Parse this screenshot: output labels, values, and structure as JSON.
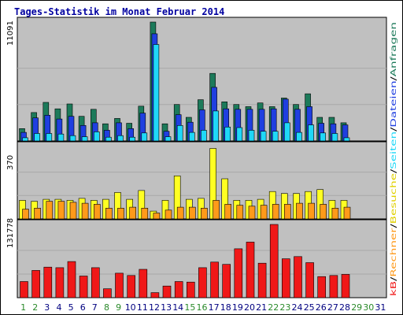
{
  "chart_data": {
    "type": "bar",
    "title": "Tages-Statistik im Monat Februar 2014",
    "x": [
      "1",
      "2",
      "3",
      "4",
      "5",
      "6",
      "7",
      "8",
      "9",
      "10",
      "11",
      "12",
      "13",
      "14",
      "15",
      "16",
      "17",
      "18",
      "19",
      "20",
      "21",
      "22",
      "23",
      "24",
      "25",
      "26",
      "27",
      "28",
      "29",
      "30",
      "31"
    ],
    "weekend_days": [
      "1",
      "2",
      "8",
      "9",
      "15",
      "16",
      "22",
      "23",
      "29",
      "30"
    ],
    "panels": [
      {
        "name": "top",
        "ymax_label": "11091",
        "ymax": 11091,
        "series": [
          {
            "name": "Anfragen",
            "color": "#1c7a5a",
            "values": [
              1150,
              2650,
              3600,
              3000,
              3450,
              2300,
              2950,
              1600,
              2100,
              1650,
              3250,
              11091,
              1600,
              3400,
              2200,
              3850,
              6300,
              3650,
              3400,
              3200,
              3550,
              3200,
              4000,
              3400,
              4400,
              2200,
              2200,
              1700,
              0,
              0,
              0
            ]
          },
          {
            "name": "Dateien",
            "color": "#1f3fe0",
            "values": [
              800,
              2150,
              2400,
              2050,
              2300,
              1450,
              1700,
              1000,
              1700,
              1150,
              2600,
              10000,
              900,
              2450,
              1750,
              2900,
              5000,
              3000,
              2950,
              2950,
              2950,
              3000,
              3900,
              2950,
              3200,
              1650,
              1600,
              1500,
              0,
              0,
              0
            ]
          },
          {
            "name": "Seiten",
            "color": "#1fd8f8",
            "values": [
              300,
              700,
              700,
              650,
              500,
              400,
              850,
              350,
              500,
              350,
              750,
              9000,
              400,
              1450,
              800,
              1000,
              2800,
              1300,
              1250,
              1000,
              900,
              900,
              1700,
              800,
              1500,
              750,
              700,
              300,
              0,
              0,
              0
            ]
          }
        ]
      },
      {
        "name": "middle",
        "ymax_label": "370",
        "ymax": 370,
        "series": [
          {
            "name": "Besuche",
            "color": "#ffff22",
            "values": [
              95,
              90,
              100,
              100,
              95,
              105,
              95,
              100,
              135,
              100,
              145,
              40,
              95,
              220,
              100,
              105,
              360,
              205,
              95,
              95,
              100,
              140,
              130,
              130,
              140,
              150,
              95,
              95,
              0,
              0,
              0
            ]
          },
          {
            "name": "Rechner",
            "color": "#ff9a1a",
            "values": [
              50,
              55,
              90,
              90,
              85,
              80,
              75,
              55,
              55,
              60,
              55,
              30,
              45,
              60,
              60,
              55,
              95,
              75,
              70,
              65,
              70,
              75,
              75,
              80,
              80,
              75,
              55,
              60,
              0,
              0,
              0
            ]
          }
        ]
      },
      {
        "name": "bottom",
        "ymax_label": "131778",
        "ymax": 131778,
        "series": [
          {
            "name": "kB",
            "color": "#f01818",
            "values": [
              29000,
              49000,
              55000,
              54000,
              65000,
              39000,
              54000,
              16000,
              44000,
              40000,
              51000,
              9000,
              21000,
              29000,
              28000,
              54000,
              64000,
              60000,
              88000,
              100000,
              62000,
              131778,
              70000,
              74000,
              63000,
              38000,
              40000,
              42000,
              0,
              0,
              0
            ]
          }
        ]
      }
    ],
    "legend_right": [
      {
        "text": "Anfragen",
        "color": "#1c7a5a"
      },
      {
        "text": "Dateien",
        "color": "#1f3fe0"
      },
      {
        "text": "Seiten",
        "color": "#1fd8f8"
      },
      {
        "text": "Besuche",
        "color": "#ffff22"
      },
      {
        "text": "Rechner",
        "color": "#ff9a1a"
      },
      {
        "text": "kB",
        "color": "#f01818"
      }
    ],
    "separator": "/",
    "colors": {
      "title": "#0000a0",
      "plot_bg": "#c0c0c0",
      "weekday_label": "#000080",
      "weekend_label": "#2a8a2a"
    }
  }
}
